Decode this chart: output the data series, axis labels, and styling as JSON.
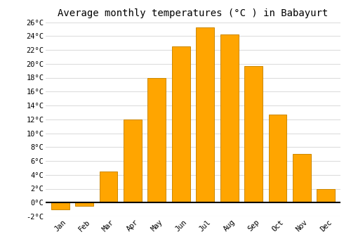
{
  "title": "Average monthly temperatures (°C ) in Babayurt",
  "months": [
    "Jan",
    "Feb",
    "Mar",
    "Apr",
    "May",
    "Jun",
    "Jul",
    "Aug",
    "Sep",
    "Oct",
    "Nov",
    "Dec"
  ],
  "temperatures": [
    -1.0,
    -0.5,
    4.5,
    12.0,
    18.0,
    22.5,
    25.2,
    24.2,
    19.7,
    12.7,
    7.0,
    2.0
  ],
  "bar_color": "#FFA500",
  "bar_edge_color": "#CC8800",
  "ylim": [
    -2,
    26
  ],
  "yticks": [
    -2,
    0,
    2,
    4,
    6,
    8,
    10,
    12,
    14,
    16,
    18,
    20,
    22,
    24,
    26
  ],
  "ytick_labels": [
    "-2°C",
    "0°C",
    "2°C",
    "4°C",
    "6°C",
    "8°C",
    "10°C",
    "12°C",
    "14°C",
    "16°C",
    "18°C",
    "20°C",
    "22°C",
    "24°C",
    "26°C"
  ],
  "background_color": "#ffffff",
  "grid_color": "#dddddd",
  "title_fontsize": 10,
  "tick_fontsize": 7.5,
  "bar_width": 0.75,
  "zero_line_color": "#000000"
}
